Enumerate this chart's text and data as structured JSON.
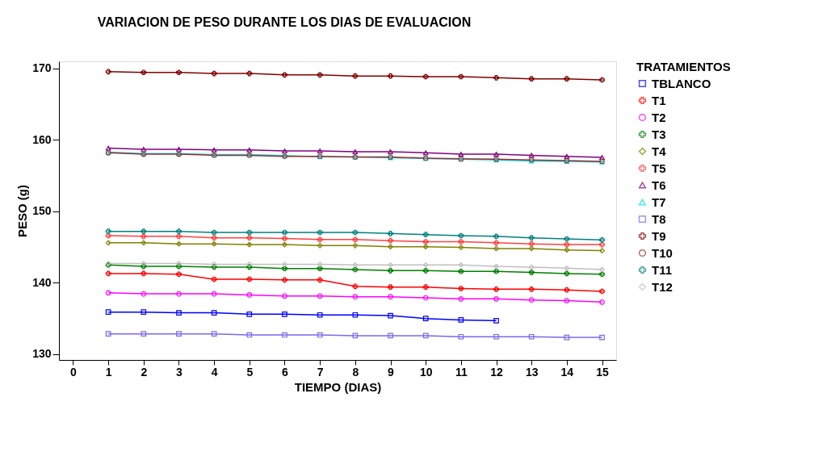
{
  "chart_data": {
    "type": "line",
    "title": "VARIACION DE PESO DURANTE LOS DIAS DE EVALUACION",
    "xlabel": "TIEMPO (DIAS)",
    "ylabel": "PESO (g)",
    "legend_title": "TRATAMIENTOS",
    "legend": "right",
    "grid": false,
    "x": [
      1,
      2,
      3,
      4,
      5,
      6,
      7,
      8,
      9,
      10,
      11,
      12,
      13,
      14,
      15
    ],
    "xlim": [
      -0.4,
      15.4
    ],
    "xticks": [
      0,
      1,
      2,
      3,
      4,
      5,
      6,
      7,
      8,
      9,
      10,
      11,
      12,
      13,
      14,
      15
    ],
    "ylim": [
      129.2,
      171
    ],
    "yticks": [
      130,
      140,
      150,
      160,
      170
    ],
    "series": [
      {
        "name": "TBLANCO",
        "color": "#0000ff",
        "marker": "square",
        "values": [
          135.9,
          135.9,
          135.8,
          135.8,
          135.6,
          135.6,
          135.5,
          135.5,
          135.4,
          135.0,
          134.8,
          134.7,
          null,
          null,
          null
        ]
      },
      {
        "name": "T1",
        "color": "#ff0000",
        "marker": "cross",
        "values": [
          141.3,
          141.3,
          141.2,
          140.5,
          140.5,
          140.4,
          140.4,
          139.5,
          139.4,
          139.4,
          139.2,
          139.1,
          139.1,
          139.0,
          138.8
        ]
      },
      {
        "name": "T2",
        "color": "#ff00ff",
        "marker": "circle",
        "values": [
          138.6,
          138.45,
          138.45,
          138.45,
          138.3,
          138.15,
          138.15,
          138.05,
          138.05,
          137.9,
          137.75,
          137.75,
          137.6,
          137.5,
          137.3
        ]
      },
      {
        "name": "T3",
        "color": "#008000",
        "marker": "cross",
        "values": [
          142.5,
          142.3,
          142.3,
          142.2,
          142.2,
          142.0,
          142.0,
          141.85,
          141.7,
          141.7,
          141.6,
          141.6,
          141.45,
          141.3,
          141.2
        ]
      },
      {
        "name": "T4",
        "color": "#808000",
        "marker": "diamond",
        "values": [
          145.6,
          145.6,
          145.45,
          145.45,
          145.35,
          145.35,
          145.2,
          145.2,
          145.05,
          145.05,
          144.95,
          144.8,
          144.8,
          144.6,
          144.5
        ]
      },
      {
        "name": "T5",
        "color": "#ff4040",
        "marker": "cross",
        "values": [
          146.6,
          146.5,
          146.5,
          146.3,
          146.3,
          146.2,
          146.05,
          146.05,
          145.9,
          145.75,
          145.75,
          145.6,
          145.45,
          145.35,
          145.35
        ]
      },
      {
        "name": "T6",
        "color": "#800080",
        "marker": "triangle",
        "values": [
          158.85,
          158.7,
          158.7,
          158.6,
          158.6,
          158.45,
          158.45,
          158.35,
          158.35,
          158.2,
          158.0,
          158.0,
          157.85,
          157.7,
          157.55
        ]
      },
      {
        "name": "T7",
        "color": "#00e5ee",
        "marker": "triangle",
        "values": [
          158.3,
          158.1,
          158.1,
          157.95,
          157.95,
          157.8,
          157.65,
          157.6,
          157.5,
          157.4,
          157.3,
          157.2,
          157.05,
          157.0,
          156.9
        ]
      },
      {
        "name": "T8",
        "color": "#7b68ee",
        "marker": "square",
        "values": [
          132.85,
          132.85,
          132.85,
          132.85,
          132.7,
          132.7,
          132.7,
          132.6,
          132.6,
          132.6,
          132.45,
          132.45,
          132.45,
          132.35,
          132.35
        ]
      },
      {
        "name": "T9",
        "color": "#800000",
        "marker": "cross",
        "values": [
          169.55,
          169.45,
          169.45,
          169.3,
          169.3,
          169.1,
          169.1,
          168.95,
          168.95,
          168.85,
          168.85,
          168.7,
          168.55,
          168.55,
          168.4
        ]
      },
      {
        "name": "T10",
        "color": "#a52a2a",
        "marker": "circle",
        "values": [
          158.2,
          158.0,
          158.0,
          157.85,
          157.85,
          157.7,
          157.7,
          157.6,
          157.6,
          157.45,
          157.35,
          157.3,
          157.2,
          157.1,
          157.0
        ]
      },
      {
        "name": "T11",
        "color": "#008080",
        "marker": "cross",
        "values": [
          147.2,
          147.2,
          147.2,
          147.05,
          147.05,
          147.05,
          147.05,
          147.05,
          146.9,
          146.75,
          146.6,
          146.5,
          146.3,
          146.15,
          146.0
        ]
      },
      {
        "name": "T12",
        "color": "#c0c0c0",
        "marker": "diamond",
        "values": [
          142.7,
          142.7,
          142.7,
          142.6,
          142.6,
          142.6,
          142.6,
          142.5,
          142.5,
          142.5,
          142.5,
          142.3,
          142.2,
          142.05,
          141.85
        ]
      }
    ]
  }
}
